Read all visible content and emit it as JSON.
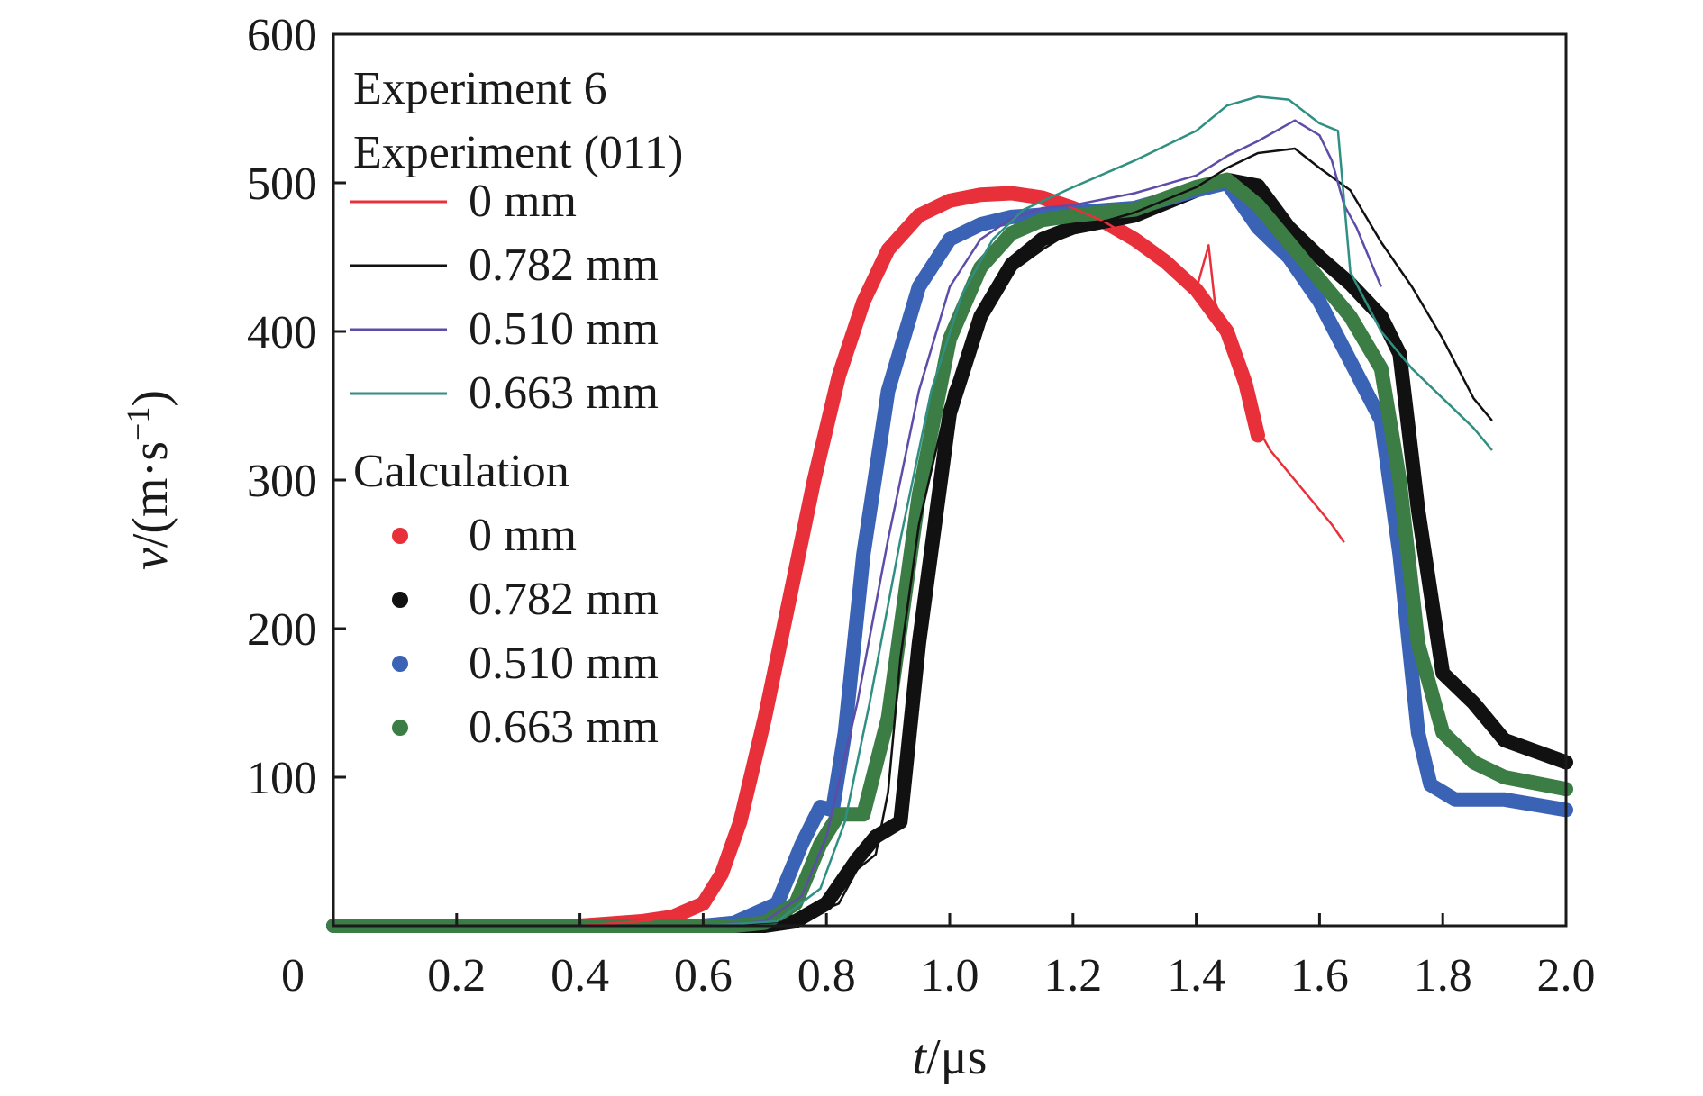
{
  "chart_data": {
    "type": "line",
    "xlabel_var": "t",
    "xlabel_unit": "/μs",
    "ylabel_var": "v",
    "ylabel_unit": "/(m·s",
    "ylabel_sup": "−1",
    "ylabel_close": ")",
    "xlim": [
      0,
      2.0
    ],
    "ylim": [
      0,
      600
    ],
    "x_ticks": [
      0.2,
      0.4,
      0.6,
      0.8,
      1.0,
      1.2,
      1.4,
      1.6,
      1.8,
      2.0
    ],
    "x_tick_labels": [
      "0.2",
      "0.4",
      "0.6",
      "0.8",
      "1.0",
      "1.2",
      "1.4",
      "1.6",
      "1.8",
      "2.0"
    ],
    "origin_label": "0",
    "y_ticks": [
      100,
      200,
      300,
      400,
      500,
      600
    ],
    "y_tick_labels": [
      "100",
      "200",
      "300",
      "400",
      "500",
      "600"
    ],
    "grid": false,
    "legend": {
      "placement": "top-left",
      "title_1": "Experiment 6",
      "title_2": "Experiment (011)",
      "calc_title": "Calculation",
      "experiment_entries": [
        "0 mm",
        "0.782 mm",
        "0.510 mm",
        "0.663 mm"
      ],
      "calculation_entries": [
        "0 mm",
        "0.782 mm",
        "0.510 mm",
        "0.663 mm"
      ]
    },
    "experiment_series": [
      {
        "name": "0 mm",
        "color": "#e8303a",
        "points": [
          [
            0,
            0
          ],
          [
            0.4,
            0
          ],
          [
            0.5,
            3
          ],
          [
            0.55,
            6
          ],
          [
            0.6,
            15
          ],
          [
            0.63,
            35
          ],
          [
            0.66,
            70
          ],
          [
            0.7,
            140
          ],
          [
            0.74,
            220
          ],
          [
            0.78,
            300
          ],
          [
            0.82,
            370
          ],
          [
            0.86,
            420
          ],
          [
            0.9,
            455
          ],
          [
            0.95,
            478
          ],
          [
            1.0,
            488
          ],
          [
            1.05,
            492
          ],
          [
            1.1,
            493
          ],
          [
            1.15,
            490
          ],
          [
            1.2,
            483
          ],
          [
            1.25,
            474
          ],
          [
            1.3,
            462
          ],
          [
            1.35,
            447
          ],
          [
            1.4,
            428
          ],
          [
            1.42,
            458
          ],
          [
            1.43,
            420
          ],
          [
            1.45,
            400
          ],
          [
            1.48,
            365
          ],
          [
            1.5,
            335
          ],
          [
            1.52,
            320
          ],
          [
            1.55,
            305
          ],
          [
            1.58,
            290
          ],
          [
            1.6,
            280
          ],
          [
            1.62,
            270
          ],
          [
            1.64,
            258
          ]
        ]
      },
      {
        "name": "0.782 mm",
        "color": "#111111",
        "points": [
          [
            0,
            0
          ],
          [
            0.6,
            0
          ],
          [
            0.75,
            3
          ],
          [
            0.82,
            15
          ],
          [
            0.85,
            38
          ],
          [
            0.88,
            48
          ],
          [
            0.9,
            90
          ],
          [
            0.92,
            180
          ],
          [
            0.95,
            270
          ],
          [
            1.0,
            360
          ],
          [
            1.05,
            410
          ],
          [
            1.1,
            440
          ],
          [
            1.15,
            455
          ],
          [
            1.2,
            468
          ],
          [
            1.3,
            480
          ],
          [
            1.4,
            497
          ],
          [
            1.45,
            510
          ],
          [
            1.5,
            520
          ],
          [
            1.56,
            523
          ],
          [
            1.6,
            510
          ],
          [
            1.65,
            495
          ],
          [
            1.7,
            460
          ],
          [
            1.75,
            430
          ],
          [
            1.8,
            395
          ],
          [
            1.85,
            355
          ],
          [
            1.88,
            340
          ]
        ]
      },
      {
        "name": "0.510 mm",
        "color": "#5d4ca8",
        "points": [
          [
            0,
            0
          ],
          [
            0.6,
            0
          ],
          [
            0.7,
            3
          ],
          [
            0.76,
            20
          ],
          [
            0.8,
            60
          ],
          [
            0.85,
            150
          ],
          [
            0.9,
            260
          ],
          [
            0.95,
            360
          ],
          [
            1.0,
            430
          ],
          [
            1.05,
            462
          ],
          [
            1.1,
            476
          ],
          [
            1.15,
            483
          ],
          [
            1.2,
            485
          ],
          [
            1.3,
            493
          ],
          [
            1.4,
            505
          ],
          [
            1.45,
            518
          ],
          [
            1.5,
            528
          ],
          [
            1.56,
            542
          ],
          [
            1.6,
            532
          ],
          [
            1.62,
            515
          ],
          [
            1.64,
            485
          ],
          [
            1.66,
            470
          ],
          [
            1.7,
            430
          ]
        ]
      },
      {
        "name": "0.663 mm",
        "color": "#2f8f82",
        "points": [
          [
            0,
            0
          ],
          [
            0.6,
            0
          ],
          [
            0.72,
            3
          ],
          [
            0.79,
            25
          ],
          [
            0.83,
            70
          ],
          [
            0.87,
            150
          ],
          [
            0.92,
            260
          ],
          [
            0.97,
            360
          ],
          [
            1.02,
            425
          ],
          [
            1.07,
            462
          ],
          [
            1.12,
            482
          ],
          [
            1.2,
            497
          ],
          [
            1.3,
            515
          ],
          [
            1.4,
            535
          ],
          [
            1.45,
            552
          ],
          [
            1.5,
            558
          ],
          [
            1.55,
            556
          ],
          [
            1.6,
            540
          ],
          [
            1.63,
            535
          ],
          [
            1.65,
            440
          ],
          [
            1.7,
            400
          ],
          [
            1.75,
            375
          ],
          [
            1.8,
            355
          ],
          [
            1.85,
            335
          ],
          [
            1.88,
            320
          ]
        ]
      }
    ],
    "calculation_series": [
      {
        "name": "0 mm",
        "color": "#e8303a",
        "points": [
          [
            0,
            0
          ],
          [
            0.4,
            0
          ],
          [
            0.5,
            3
          ],
          [
            0.55,
            6
          ],
          [
            0.6,
            15
          ],
          [
            0.63,
            35
          ],
          [
            0.66,
            70
          ],
          [
            0.7,
            140
          ],
          [
            0.74,
            220
          ],
          [
            0.78,
            300
          ],
          [
            0.82,
            370
          ],
          [
            0.86,
            420
          ],
          [
            0.9,
            455
          ],
          [
            0.95,
            478
          ],
          [
            1.0,
            488
          ],
          [
            1.05,
            492
          ],
          [
            1.1,
            493
          ],
          [
            1.15,
            490
          ],
          [
            1.2,
            483
          ],
          [
            1.25,
            474
          ],
          [
            1.3,
            462
          ],
          [
            1.35,
            447
          ],
          [
            1.4,
            428
          ],
          [
            1.45,
            400
          ],
          [
            1.48,
            365
          ],
          [
            1.5,
            330
          ]
        ]
      },
      {
        "name": "0.782 mm",
        "color": "#111111",
        "points": [
          [
            0,
            0
          ],
          [
            0.7,
            0
          ],
          [
            0.75,
            3
          ],
          [
            0.8,
            15
          ],
          [
            0.85,
            45
          ],
          [
            0.88,
            60
          ],
          [
            0.92,
            70
          ],
          [
            0.95,
            190
          ],
          [
            1.0,
            345
          ],
          [
            1.05,
            410
          ],
          [
            1.1,
            445
          ],
          [
            1.15,
            462
          ],
          [
            1.2,
            470
          ],
          [
            1.3,
            478
          ],
          [
            1.4,
            495
          ],
          [
            1.45,
            502
          ],
          [
            1.5,
            498
          ],
          [
            1.55,
            470
          ],
          [
            1.6,
            450
          ],
          [
            1.65,
            432
          ],
          [
            1.7,
            410
          ],
          [
            1.73,
            385
          ],
          [
            1.76,
            280
          ],
          [
            1.8,
            170
          ],
          [
            1.85,
            150
          ],
          [
            1.9,
            125
          ],
          [
            2.0,
            110
          ]
        ]
      },
      {
        "name": "0.510 mm",
        "color": "#3a62b5",
        "points": [
          [
            0,
            0
          ],
          [
            0.6,
            0
          ],
          [
            0.65,
            2
          ],
          [
            0.72,
            15
          ],
          [
            0.76,
            55
          ],
          [
            0.79,
            80
          ],
          [
            0.81,
            78
          ],
          [
            0.83,
            130
          ],
          [
            0.86,
            250
          ],
          [
            0.9,
            360
          ],
          [
            0.95,
            430
          ],
          [
            1.0,
            462
          ],
          [
            1.05,
            472
          ],
          [
            1.1,
            477
          ],
          [
            1.2,
            480
          ],
          [
            1.3,
            483
          ],
          [
            1.4,
            495
          ],
          [
            1.45,
            500
          ],
          [
            1.5,
            470
          ],
          [
            1.55,
            450
          ],
          [
            1.6,
            420
          ],
          [
            1.65,
            380
          ],
          [
            1.7,
            340
          ],
          [
            1.73,
            250
          ],
          [
            1.76,
            130
          ],
          [
            1.78,
            95
          ],
          [
            1.82,
            85
          ],
          [
            1.9,
            85
          ],
          [
            2.0,
            78
          ]
        ]
      },
      {
        "name": "0.663 mm",
        "color": "#3c7d45",
        "points": [
          [
            0,
            0
          ],
          [
            0.65,
            0
          ],
          [
            0.7,
            2
          ],
          [
            0.75,
            15
          ],
          [
            0.79,
            55
          ],
          [
            0.82,
            75
          ],
          [
            0.86,
            75
          ],
          [
            0.9,
            140
          ],
          [
            0.95,
            290
          ],
          [
            1.0,
            395
          ],
          [
            1.05,
            443
          ],
          [
            1.1,
            466
          ],
          [
            1.15,
            475
          ],
          [
            1.2,
            478
          ],
          [
            1.3,
            482
          ],
          [
            1.4,
            497
          ],
          [
            1.45,
            502
          ],
          [
            1.5,
            485
          ],
          [
            1.55,
            460
          ],
          [
            1.6,
            435
          ],
          [
            1.65,
            410
          ],
          [
            1.7,
            375
          ],
          [
            1.73,
            300
          ],
          [
            1.76,
            190
          ],
          [
            1.8,
            130
          ],
          [
            1.85,
            110
          ],
          [
            1.9,
            100
          ],
          [
            2.0,
            92
          ]
        ]
      }
    ]
  }
}
